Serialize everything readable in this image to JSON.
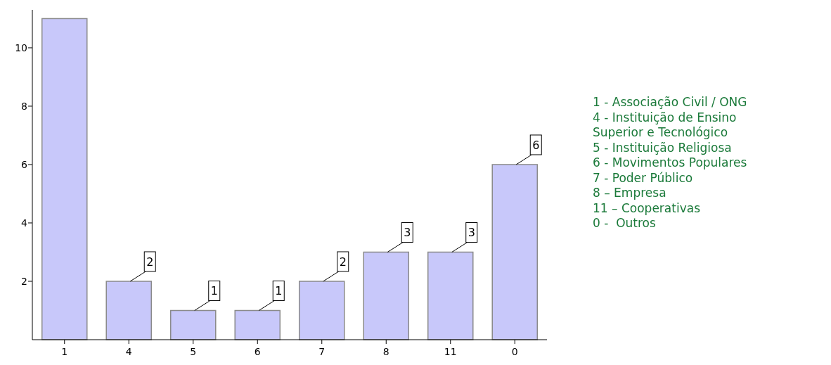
{
  "chart_data": {
    "type": "bar",
    "categories": [
      "1",
      "4",
      "5",
      "6",
      "7",
      "8",
      "11",
      "0"
    ],
    "values": [
      11,
      2,
      1,
      1,
      2,
      3,
      3,
      6
    ],
    "value_labels": [
      null,
      "2",
      "1",
      "1",
      "2",
      "3",
      "3",
      "6"
    ],
    "color": "#c8c8fa",
    "ylim": [
      0,
      11.3
    ],
    "yticks": [
      2,
      4,
      6,
      8,
      10
    ],
    "grid": false,
    "annotations": [
      "1 - Associação Civil / ONG",
      "4 - Instituição de Ensino Superior e Tecnológico",
      "5 - Instituição Religiosa",
      "6 - Movimentos Populares",
      "7 - Poder Público",
      "8 – Empresa",
      "11 – Cooperativas",
      "0 -  Outros"
    ]
  }
}
